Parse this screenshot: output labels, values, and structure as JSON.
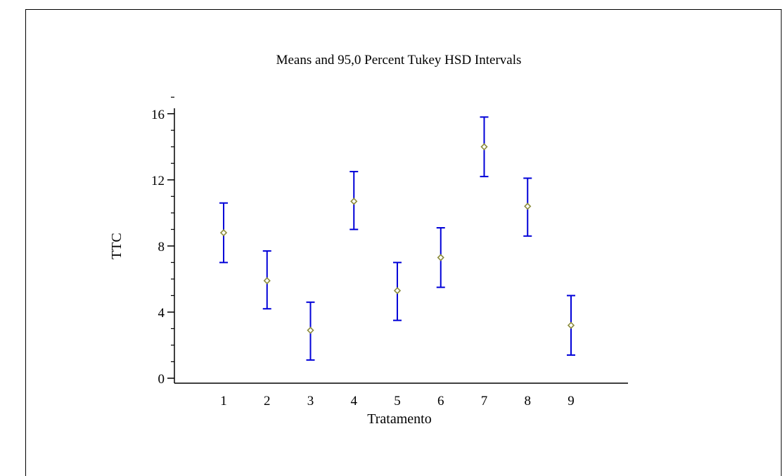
{
  "chart_data": {
    "type": "scatter",
    "title": "Means and 95,0 Percent Tukey HSD Intervals",
    "xlabel": "Tratamento",
    "ylabel": "TTC",
    "categories": [
      "1",
      "2",
      "3",
      "4",
      "5",
      "6",
      "7",
      "8",
      "9"
    ],
    "series": [
      {
        "means": [
          8.8,
          5.9,
          2.9,
          10.7,
          5.3,
          7.3,
          14.0,
          10.4,
          3.2
        ],
        "lower": [
          7.0,
          4.2,
          1.1,
          9.0,
          3.5,
          5.5,
          12.2,
          8.6,
          1.4
        ],
        "upper": [
          10.6,
          7.7,
          4.6,
          12.5,
          7.0,
          9.1,
          15.8,
          12.1,
          5.0
        ]
      }
    ],
    "yticks": [
      0,
      4,
      8,
      12,
      16
    ],
    "ylim": [
      -0.3,
      16.5
    ],
    "grid": false,
    "colors": {
      "interval": "#0000d8",
      "marker": "#8c8c3c",
      "axis": "#000000"
    }
  }
}
